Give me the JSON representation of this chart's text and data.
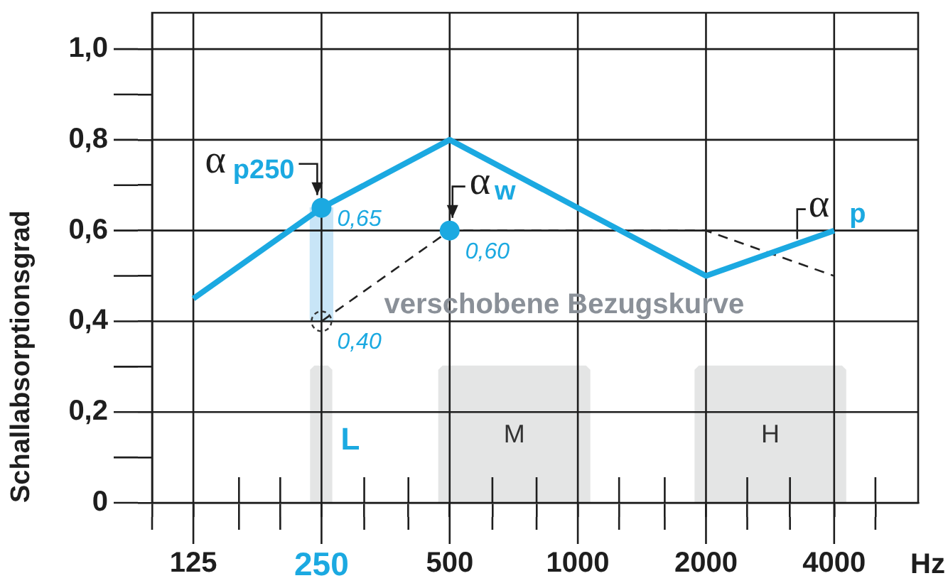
{
  "chart_data": {
    "type": "line",
    "xlabel": "Hz",
    "ylabel": "Schallabsorptionsgrad",
    "log": "x",
    "xlim": [
      100,
      6300
    ],
    "xticks": [
      {
        "value": 100,
        "label": null
      },
      125,
      {
        "value": 160,
        "label": null
      },
      {
        "value": 200,
        "label": null
      },
      250,
      {
        "value": 315,
        "label": null
      },
      {
        "value": 400,
        "label": null
      },
      500,
      {
        "value": 630,
        "label": null
      },
      {
        "value": 800,
        "label": null
      },
      1000,
      {
        "value": 1250,
        "label": null
      },
      {
        "value": 1600,
        "label": null
      },
      2000,
      {
        "value": 2500,
        "label": null
      },
      {
        "value": 3150,
        "label": null
      },
      4000,
      {
        "value": 5000,
        "label": null
      }
    ],
    "ylim": [
      0,
      1.08
    ],
    "yticks": [
      0,
      {
        "value": 0.1,
        "label": null
      },
      {
        "value": 0.2,
        "label": "0,2"
      },
      {
        "value": 0.3,
        "label": null
      },
      {
        "value": 0.4,
        "label": "0,4"
      },
      {
        "value": 0.5,
        "label": null
      },
      {
        "value": 0.6,
        "label": "0,6"
      },
      {
        "value": 0.7,
        "label": null
      },
      {
        "value": 0.8,
        "label": "0,8"
      },
      {
        "value": 0.9,
        "label": null
      },
      {
        "value": 1.0,
        "label": "1,0"
      }
    ],
    "grid": true,
    "legend": false,
    "series": [
      {
        "color": "#1ba9e1",
        "marker": "none",
        "x": [
          125,
          250,
          500,
          1000,
          2000,
          4000
        ],
        "values": [
          0.45,
          0.65,
          0.8,
          0.65,
          0.5,
          0.6
        ]
      },
      {
        "name": "verschobene Bezugskurve",
        "color": "#222222",
        "line_style": "dashed",
        "marker": "none",
        "x": [
          250,
          500,
          1000,
          2000,
          4000
        ],
        "values": [
          0.4,
          0.6,
          0.6,
          0.6,
          0.5
        ]
      },
      {
        "type": "bar",
        "color": "#c8e5f7",
        "x": [
          250
        ],
        "base": [
          0.4
        ],
        "values": [
          0.25
        ]
      },
      {
        "type": "scatter",
        "color": "#1ba9e1",
        "marker": "circle",
        "x": [
          250,
          500
        ],
        "values": [
          0.65,
          0.6
        ],
        "value_labels": [
          "0,65",
          "0,60"
        ]
      },
      {
        "type": "scatter",
        "color": "#333333",
        "marker": "circle",
        "line_style": "dashed",
        "x": [
          250
        ],
        "values": [
          0.4
        ],
        "value_labels": [
          "0,40"
        ]
      }
    ],
    "bands": [
      {
        "axis": "x",
        "from": 235,
        "to": 265,
        "label": "L",
        "color": "#e4e5e5"
      },
      {
        "axis": "x",
        "from": 470,
        "to": 1070,
        "label": "M",
        "color": "#e4e5e5"
      },
      {
        "axis": "x",
        "from": 1880,
        "to": 4270,
        "label": "H",
        "color": "#e4e5e5"
      }
    ],
    "annotations": [
      {
        "text": "α$_{p250}$",
        "x": 250,
        "y": 0.65
      },
      {
        "text": "α$_{w}$",
        "x": 500,
        "y": 0.6
      },
      {
        "text": "α$_{p}$",
        "x": 4000,
        "y": 0.6
      }
    ]
  }
}
